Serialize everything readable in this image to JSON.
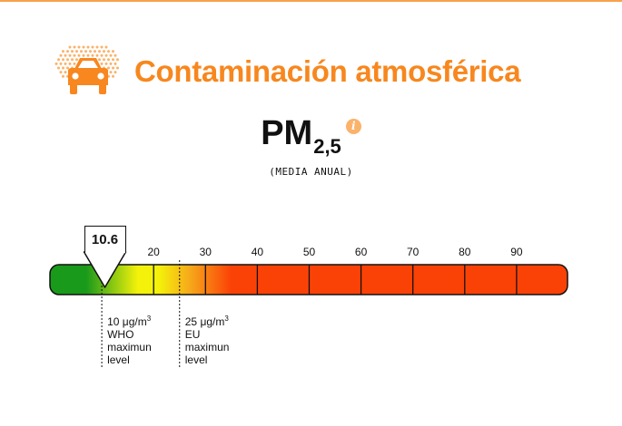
{
  "header": {
    "title": "Contaminación atmosférica",
    "icon": "car-pollution-icon"
  },
  "pollutant": {
    "name": "PM",
    "subscript": "2,5",
    "info_icon": "info-icon",
    "info_glyph": "i",
    "subtitle": "(MEDIA ANUAL)"
  },
  "gauge": {
    "value": "10.6",
    "value_numeric": 10.6,
    "scale_min": 0,
    "scale_max": 100,
    "tick_labels": [
      "20",
      "30",
      "40",
      "50",
      "60",
      "70",
      "80",
      "90"
    ],
    "references": [
      {
        "value": 10,
        "value_text": "10",
        "unit": "μg/m",
        "unit_exp": "3",
        "lines": [
          "WHO",
          "maximun",
          "level"
        ]
      },
      {
        "value": 25,
        "value_text": "25",
        "unit": "μg/m",
        "unit_exp": "3",
        "lines": [
          "EU",
          "maximun",
          "level"
        ]
      }
    ]
  },
  "colors": {
    "accent": "#f7871e",
    "accent_light": "#fbb26a",
    "green": "#1a9a1a",
    "yellow": "#f4f20a",
    "orange": "#f6a91a",
    "red": "#fb4206",
    "top_rule": "#f7a24a"
  }
}
